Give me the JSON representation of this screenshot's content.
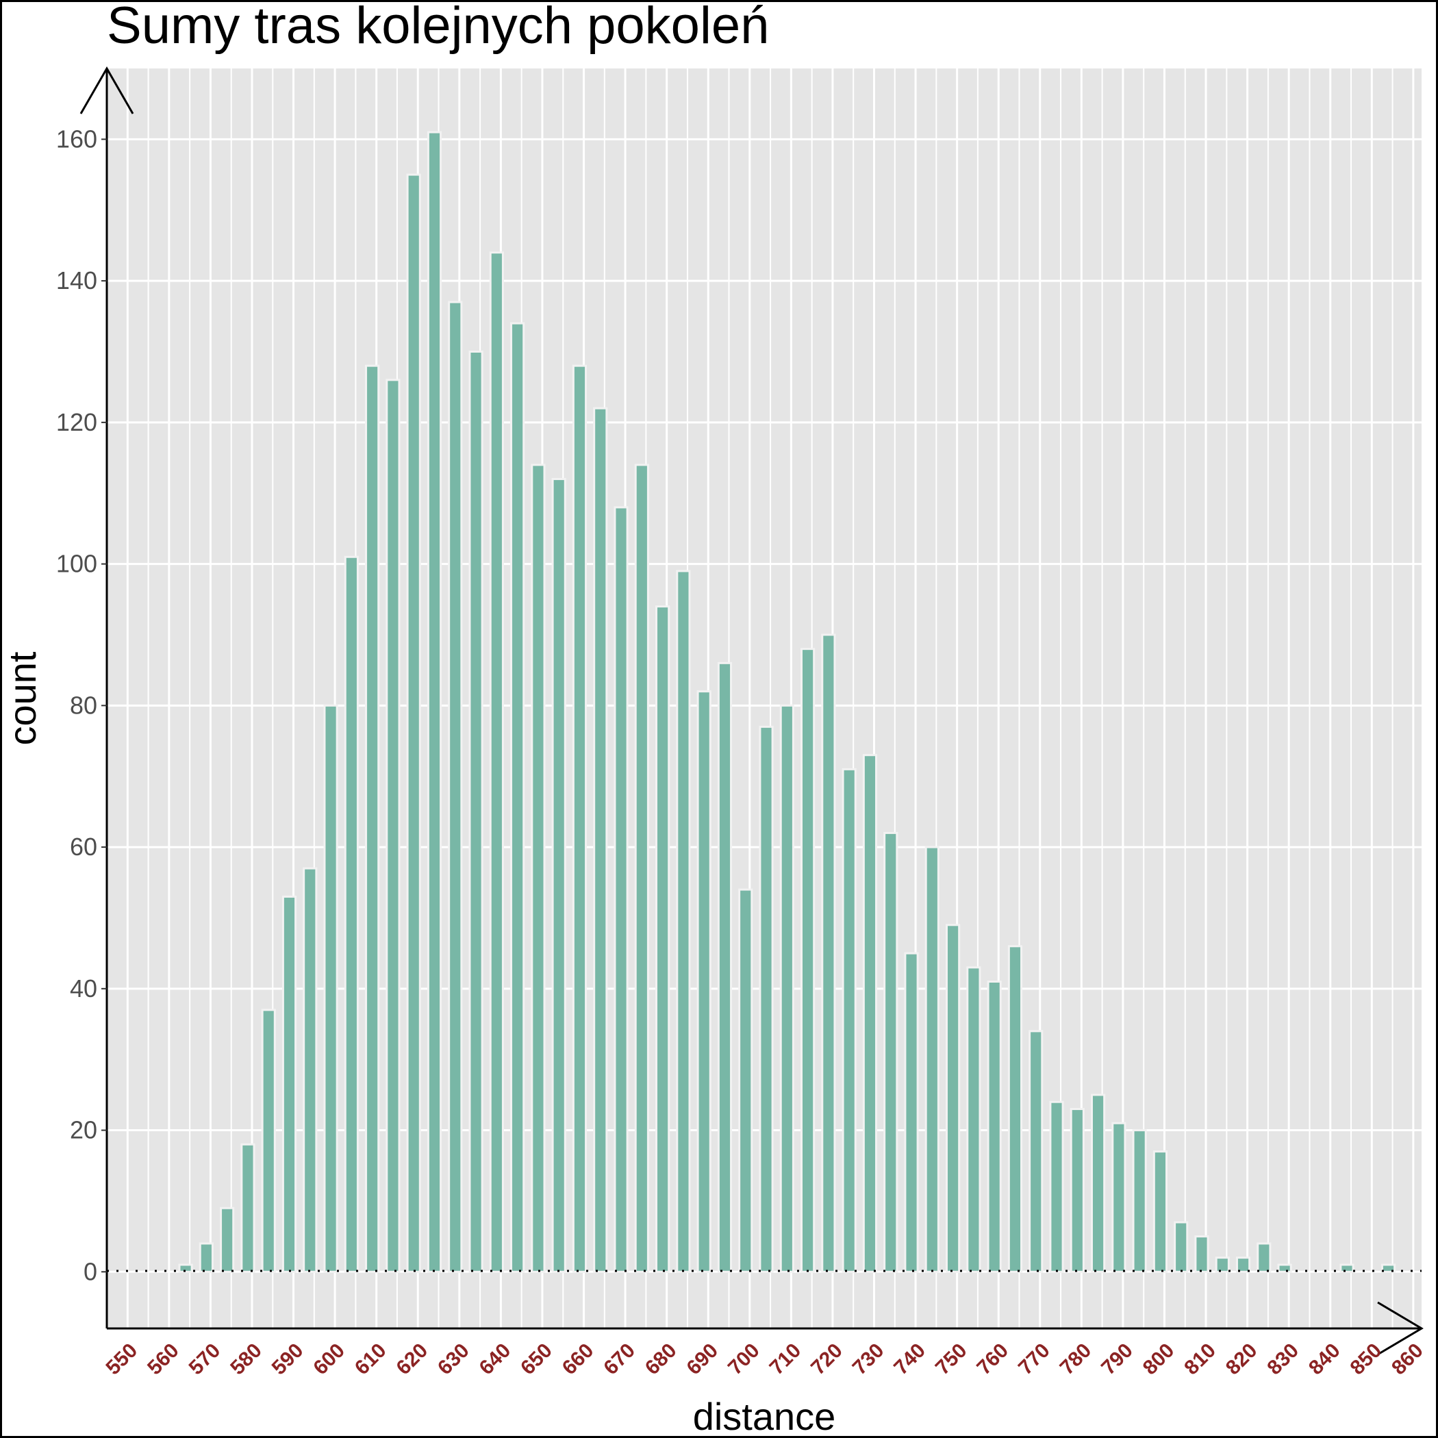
{
  "chart_data": {
    "type": "bar",
    "title": "Sumy tras kolejnych pokoleń",
    "xlabel": "distance",
    "ylabel": "count",
    "bin_width": 3,
    "xlim": [
      545,
      862
    ],
    "ylim": [
      -8,
      170
    ],
    "x_ticks": [
      550,
      560,
      570,
      580,
      590,
      600,
      610,
      620,
      630,
      640,
      650,
      660,
      670,
      680,
      690,
      700,
      710,
      720,
      730,
      740,
      750,
      760,
      770,
      780,
      790,
      800,
      810,
      820,
      830,
      840,
      850,
      860
    ],
    "y_ticks": [
      0,
      20,
      40,
      60,
      80,
      100,
      120,
      140,
      160
    ],
    "grid": true,
    "baseline": 0,
    "bin_centers": [
      559,
      564,
      569,
      574,
      579,
      584,
      589,
      594,
      599,
      604,
      609,
      614,
      619,
      624,
      629,
      634,
      639,
      644,
      649,
      654,
      659,
      664,
      669,
      674,
      679,
      684,
      689,
      694,
      699,
      704,
      709,
      714,
      719,
      724,
      729,
      734,
      739,
      744,
      749,
      754,
      759,
      764,
      769,
      774,
      779,
      784,
      789,
      794,
      799,
      804,
      809,
      814,
      819,
      824,
      829,
      834,
      839,
      844,
      849,
      854
    ],
    "values": [
      0,
      1,
      4,
      9,
      18,
      37,
      53,
      57,
      80,
      101,
      128,
      126,
      155,
      161,
      137,
      130,
      144,
      134,
      114,
      112,
      128,
      122,
      108,
      114,
      94,
      99,
      82,
      86,
      54,
      77,
      80,
      88,
      90,
      71,
      73,
      62,
      45,
      60,
      49,
      43,
      41,
      46,
      34,
      24,
      23,
      25,
      21,
      20,
      17,
      7,
      5,
      2,
      2,
      4,
      1,
      0,
      0,
      1,
      0,
      1
    ],
    "colors": {
      "bar_fill": "#78b7a6",
      "bar_stroke": "#f2f2f2",
      "panel_bg": "#e5e5e5",
      "grid": "#ffffff",
      "x_tick_label": "#8b2323",
      "y_tick_label": "#4d4d4d"
    }
  }
}
